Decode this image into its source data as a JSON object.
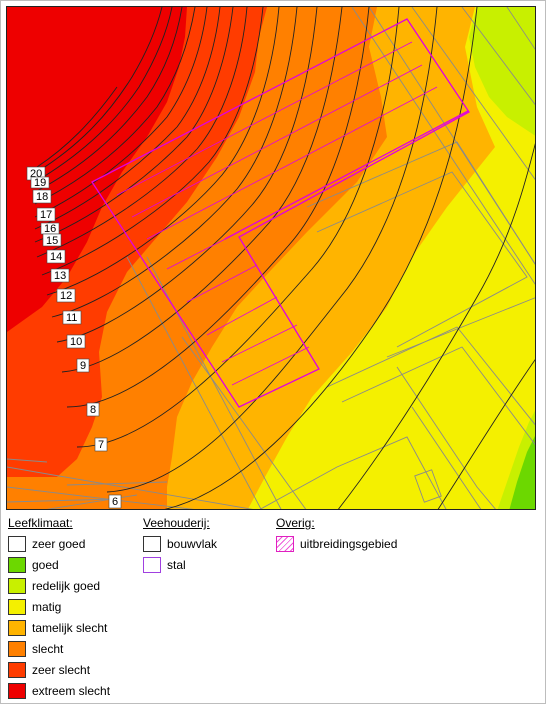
{
  "map": {
    "contour_labels": [
      "20",
      "19",
      "18",
      "17",
      "16",
      "15",
      "14",
      "13",
      "12",
      "11",
      "10",
      "9",
      "8",
      "7",
      "6"
    ],
    "colors": {
      "extreem_slecht": "#ee0000",
      "zeer_slecht": "#ff3c00",
      "slecht": "#ff8000",
      "tamelijk_slecht": "#ffb400",
      "matig": "#f4f000",
      "redelijk_goed": "#c8f000",
      "goed": "#6cd800",
      "contour": "#222222",
      "parcel": "#8a8a8a",
      "stal": "#e000e0"
    }
  },
  "legend": {
    "leefklimaat": {
      "title": "Leefklimaat:",
      "items": [
        {
          "label": "zeer goed",
          "color": "#ffffff"
        },
        {
          "label": "goed",
          "color": "#6cd800"
        },
        {
          "label": "redelijk goed",
          "color": "#c8f000"
        },
        {
          "label": "matig",
          "color": "#f4f000"
        },
        {
          "label": "tamelijk slecht",
          "color": "#ffb400"
        },
        {
          "label": "slecht",
          "color": "#ff8000"
        },
        {
          "label": "zeer slecht",
          "color": "#ff3c00"
        },
        {
          "label": "extreem slecht",
          "color": "#ee0000"
        }
      ]
    },
    "veehouderij": {
      "title": "Veehouderij:",
      "items": [
        {
          "label": "bouwvlak",
          "color": "#333333"
        },
        {
          "label": "stal",
          "color": "#a040e0"
        }
      ]
    },
    "overig": {
      "title": "Overig:",
      "items": [
        {
          "label": "uitbreidingsgebied",
          "color": "#e020c0"
        }
      ]
    }
  }
}
